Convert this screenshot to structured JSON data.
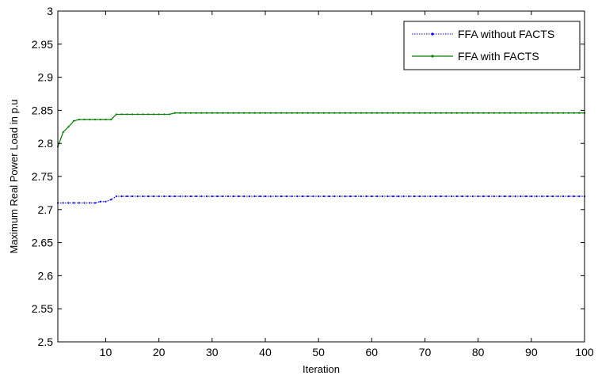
{
  "chart_data": {
    "type": "line",
    "xlabel": "Iteration",
    "ylabel": "Maximum Real Power Load in p.u",
    "xlim": [
      1,
      100
    ],
    "ylim": [
      2.5,
      3.0
    ],
    "x_ticks": [
      "10",
      "20",
      "30",
      "40",
      "50",
      "60",
      "70",
      "80",
      "90",
      "100"
    ],
    "y_ticks": [
      "2.5",
      "2.55",
      "2.6",
      "2.65",
      "2.7",
      "2.75",
      "2.8",
      "2.85",
      "2.9",
      "2.95",
      "3"
    ],
    "grid": false,
    "legend_position": "top-right",
    "series": [
      {
        "name": "FFA without FACTS",
        "color": "#0000ff",
        "line_style": "dotted-with-dots",
        "x": [
          1,
          8,
          9,
          10,
          11,
          12,
          100
        ],
        "y": [
          2.71,
          2.71,
          2.712,
          2.712,
          2.715,
          2.72,
          2.72
        ]
      },
      {
        "name": "FFA with FACTS",
        "color": "#008000",
        "line_style": "solid-with-dots",
        "x": [
          1,
          2,
          3,
          4,
          5,
          6,
          7,
          8,
          9,
          10,
          11,
          12,
          22,
          23,
          100
        ],
        "y": [
          2.795,
          2.817,
          2.825,
          2.834,
          2.836,
          2.836,
          2.836,
          2.836,
          2.836,
          2.836,
          2.836,
          2.844,
          2.844,
          2.846,
          2.846
        ]
      }
    ]
  }
}
